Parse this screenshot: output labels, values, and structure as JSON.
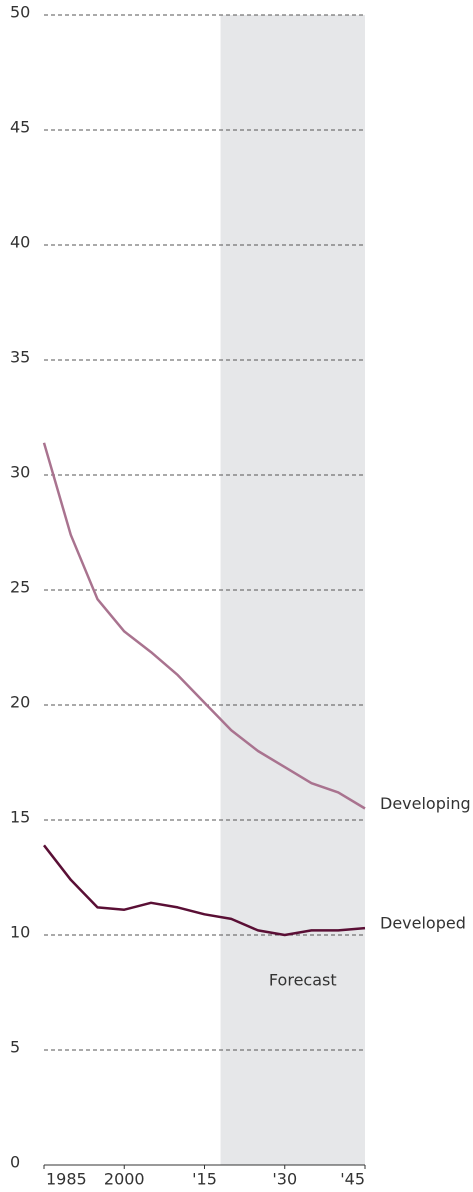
{
  "chart_data": {
    "type": "line",
    "x": [
      1985,
      1990,
      1995,
      2000,
      2005,
      2010,
      2015,
      2020,
      2025,
      2030,
      2035,
      2040,
      2045
    ],
    "series": [
      {
        "name": "Developing",
        "color": "#a9738f",
        "values": [
          31.4,
          27.4,
          24.6,
          23.2,
          22.3,
          21.3,
          20.1,
          18.9,
          18.0,
          17.3,
          16.6,
          16.2,
          15.5
        ]
      },
      {
        "name": "Developed",
        "color": "#5a0f35",
        "values": [
          13.9,
          12.4,
          11.2,
          11.1,
          11.4,
          11.2,
          10.9,
          10.7,
          10.2,
          10.0,
          10.2,
          10.2,
          10.3
        ]
      }
    ],
    "xlim": [
      1985,
      2045
    ],
    "xticks": [
      1985,
      2000,
      {
        "value": 2015,
        "label": "'15"
      },
      {
        "value": 2030,
        "label": "'30"
      },
      {
        "value": 2045,
        "label": "'45"
      }
    ],
    "ylim": [
      0,
      50
    ],
    "yticks": [
      0,
      5,
      10,
      15,
      20,
      25,
      30,
      35,
      40,
      45,
      50
    ],
    "grid": true,
    "forecast_start": 2018,
    "annotation": "Forecast"
  }
}
